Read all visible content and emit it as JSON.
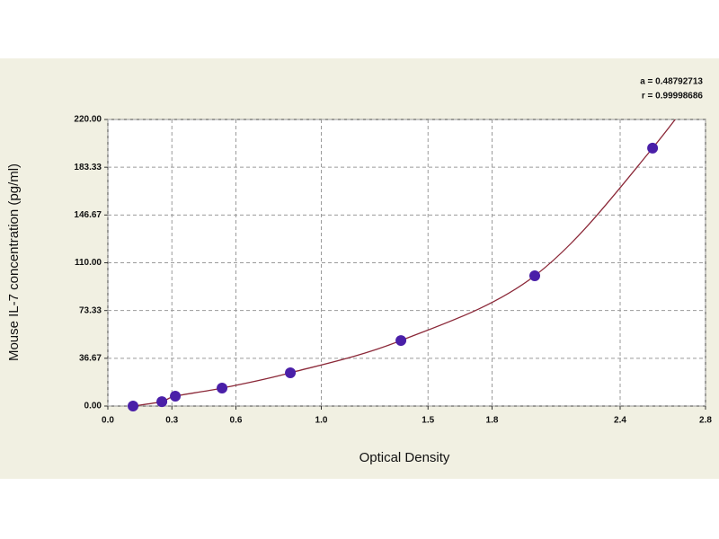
{
  "chart_data": {
    "type": "scatter",
    "annotations": [
      "a = 0.48792713",
      "r = 0.99998686"
    ],
    "x_label": "Optical Density",
    "y_label": "Mouse IL-7 concentration (pg/ml)",
    "x": [
      0.118,
      0.253,
      0.316,
      0.535,
      0.855,
      1.373,
      2.0,
      2.552
    ],
    "series": [
      {
        "color": "#4a1fa8",
        "line_color": "#8b2838",
        "values": [
          0,
          3.4,
          7.6,
          13.8,
          25.5,
          50.3,
          100,
          198
        ]
      }
    ],
    "xlim": [
      0,
      2.8
    ],
    "xticks": [
      {
        "value": 0,
        "label": "0.0"
      },
      0.3,
      0.6,
      {
        "value": 1,
        "label": "1.0"
      },
      1.5,
      1.8,
      2.4,
      2.8
    ],
    "ylim": [
      0,
      220
    ],
    "yticks": [
      {
        "value": 0,
        "label": "0.00"
      },
      {
        "value": 36.67,
        "label": "36.67"
      },
      {
        "value": 73.33,
        "label": "73.33"
      },
      {
        "value": 110,
        "label": "110.00"
      },
      {
        "value": 146.67,
        "label": "146.67"
      },
      {
        "value": 183.33,
        "label": "183.33"
      },
      {
        "value": 220,
        "label": "220.00"
      }
    ],
    "grid": true
  }
}
